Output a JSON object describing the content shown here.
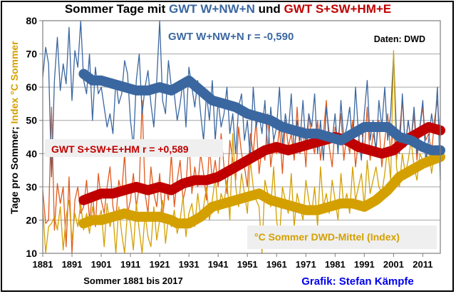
{
  "chart_data": {
    "type": "line",
    "title_parts": [
      {
        "text": "Sommer Tage mit ",
        "color": "#000000"
      },
      {
        "text": "GWT W+NW+N",
        "color": "#3b67a0"
      },
      {
        "text": " und ",
        "color": "#000000"
      },
      {
        "text": "GWT S+SW+HM+E",
        "color": "#c00000"
      }
    ],
    "ylabel_parts": [
      {
        "text": "Tage  pro Sommer; ",
        "color": "#000000"
      },
      {
        "text": "Index °C Sommer",
        "color": "#d4a000"
      }
    ],
    "xlabel": "Sommer 1881 bis 2017",
    "credit": "Grafik: Stefan Kämpfe",
    "source": "Daten: DWD",
    "xlim": [
      1881,
      2017
    ],
    "ylim": [
      10,
      80
    ],
    "xticks": [
      1881,
      1891,
      1901,
      1911,
      1921,
      1931,
      1941,
      1951,
      1961,
      1971,
      1981,
      1991,
      2001,
      2011
    ],
    "yticks": [
      10,
      20,
      30,
      40,
      50,
      60,
      70,
      80
    ],
    "grid": true,
    "annotations": [
      {
        "text": "GWT W+NW+N  r = -0,590",
        "color": "#3b67a0",
        "boxed": false
      },
      {
        "text": "GWT S+SW+E+HM r = +0,589",
        "color": "#c00000",
        "boxed": true
      },
      {
        "text": "°C Sommer DWD-Mittel (Index)",
        "color": "#d4a000",
        "boxed": true
      }
    ],
    "series": [
      {
        "name": "GWT W+NW+N (smoothed)",
        "color": "#3b67a0",
        "kind": "smooth",
        "x": [
          1895,
          1898,
          1901,
          1905,
          1909,
          1913,
          1917,
          1921,
          1925,
          1929,
          1931,
          1935,
          1939,
          1943,
          1947,
          1951,
          1955,
          1959,
          1963,
          1967,
          1971,
          1975,
          1979,
          1983,
          1987,
          1991,
          1995,
          1999,
          2003,
          2007,
          2011,
          2014,
          2017
        ],
        "y": [
          64,
          62,
          62,
          61,
          60,
          59,
          59,
          60,
          59,
          61,
          62,
          59,
          56,
          55,
          54,
          52,
          51,
          50,
          48,
          47,
          46,
          46,
          45,
          44,
          46,
          48,
          48,
          48,
          45,
          44,
          42,
          41,
          41
        ]
      },
      {
        "name": "GWT S+SW+HM+E (smoothed)",
        "color": "#c00000",
        "kind": "smooth",
        "x": [
          1895,
          1898,
          1901,
          1905,
          1909,
          1913,
          1917,
          1921,
          1925,
          1929,
          1933,
          1937,
          1941,
          1945,
          1949,
          1953,
          1957,
          1961,
          1965,
          1969,
          1973,
          1977,
          1981,
          1985,
          1989,
          1993,
          1997,
          2001,
          2005,
          2009,
          2013,
          2017
        ],
        "y": [
          26,
          27,
          28,
          28,
          29,
          30,
          29,
          30,
          29,
          31,
          32,
          32,
          33,
          35,
          37,
          39,
          41,
          42,
          41,
          42,
          43,
          44,
          45,
          44,
          42,
          41,
          40,
          41,
          44,
          46,
          48,
          47
        ]
      },
      {
        "name": "°C Sommer DWD-Mittel (Index, smoothed)",
        "color": "#d4a000",
        "kind": "smooth",
        "x": [
          1895,
          1898,
          1901,
          1905,
          1909,
          1913,
          1917,
          1921,
          1925,
          1927,
          1931,
          1935,
          1939,
          1943,
          1947,
          1951,
          1955,
          1959,
          1963,
          1967,
          1971,
          1975,
          1979,
          1983,
          1987,
          1991,
          1995,
          1999,
          2003,
          2007,
          2011,
          2014,
          2017
        ],
        "y": [
          19,
          20,
          20,
          21,
          22,
          21,
          21,
          21,
          20,
          19,
          19,
          21,
          24,
          25,
          26,
          27,
          28,
          26,
          25,
          24,
          23,
          23,
          24,
          25,
          25,
          24,
          26,
          29,
          33,
          35,
          37,
          38,
          39
        ]
      },
      {
        "name": "GWT W+NW+N (annual)",
        "color": "#3b67a0",
        "kind": "annual",
        "x": [
          1881,
          1882,
          1883,
          1884,
          1885,
          1886,
          1887,
          1888,
          1889,
          1890,
          1891,
          1892,
          1893,
          1894,
          1895,
          1896,
          1897,
          1898,
          1899,
          1900,
          1901,
          1902,
          1903,
          1904,
          1905,
          1906,
          1907,
          1908,
          1909,
          1910,
          1911,
          1912,
          1913,
          1914,
          1915,
          1916,
          1917,
          1918,
          1919,
          1920,
          1921,
          1922,
          1923,
          1924,
          1925,
          1926,
          1927,
          1928,
          1929,
          1930,
          1931,
          1932,
          1933,
          1934,
          1935,
          1936,
          1937,
          1938,
          1939,
          1940,
          1941,
          1942,
          1943,
          1944,
          1945,
          1946,
          1947,
          1948,
          1949,
          1950,
          1951,
          1952,
          1953,
          1954,
          1955,
          1956,
          1957,
          1958,
          1959,
          1960,
          1961,
          1962,
          1963,
          1964,
          1965,
          1966,
          1967,
          1968,
          1969,
          1970,
          1971,
          1972,
          1973,
          1974,
          1975,
          1976,
          1977,
          1978,
          1979,
          1980,
          1981,
          1982,
          1983,
          1984,
          1985,
          1986,
          1987,
          1988,
          1989,
          1990,
          1991,
          1992,
          1993,
          1994,
          1995,
          1996,
          1997,
          1998,
          1999,
          2000,
          2001,
          2002,
          2003,
          2004,
          2005,
          2006,
          2007,
          2008,
          2009,
          2010,
          2011,
          2012,
          2013,
          2014,
          2015,
          2016,
          2017
        ],
        "y": [
          63,
          72,
          67,
          33,
          62,
          75,
          59,
          67,
          61,
          78,
          56,
          71,
          66,
          80,
          62,
          58,
          70,
          50,
          66,
          58,
          60,
          54,
          48,
          52,
          46,
          62,
          55,
          58,
          68,
          64,
          50,
          42,
          62,
          70,
          52,
          60,
          65,
          55,
          48,
          62,
          80,
          56,
          52,
          68,
          60,
          58,
          50,
          55,
          62,
          48,
          66,
          60,
          54,
          62,
          52,
          44,
          58,
          50,
          62,
          44,
          56,
          48,
          52,
          60,
          46,
          52,
          40,
          54,
          58,
          44,
          50,
          38,
          60,
          48,
          52,
          46,
          56,
          40,
          54,
          44,
          48,
          60,
          42,
          52,
          46,
          58,
          40,
          50,
          44,
          56,
          42,
          52,
          48,
          58,
          40,
          50,
          38,
          54,
          46,
          44,
          52,
          40,
          56,
          44,
          48,
          54,
          42,
          60,
          46,
          38,
          52,
          62,
          44,
          50,
          40,
          56,
          48,
          60,
          44,
          52,
          70,
          46,
          40,
          58,
          42,
          50,
          44,
          54,
          40,
          48,
          56,
          38,
          44,
          52,
          46,
          60,
          32
        ]
      },
      {
        "name": "GWT S+SW+HM+E (annual)",
        "color": "#e05a1e",
        "kind": "annual",
        "x": [
          1881,
          1882,
          1883,
          1884,
          1885,
          1886,
          1887,
          1888,
          1889,
          1890,
          1891,
          1892,
          1893,
          1894,
          1895,
          1896,
          1897,
          1898,
          1899,
          1900,
          1901,
          1902,
          1903,
          1904,
          1905,
          1906,
          1907,
          1908,
          1909,
          1910,
          1911,
          1912,
          1913,
          1914,
          1915,
          1916,
          1917,
          1918,
          1919,
          1920,
          1921,
          1922,
          1923,
          1924,
          1925,
          1926,
          1927,
          1928,
          1929,
          1930,
          1931,
          1932,
          1933,
          1934,
          1935,
          1936,
          1937,
          1938,
          1939,
          1940,
          1941,
          1942,
          1943,
          1944,
          1945,
          1946,
          1947,
          1948,
          1949,
          1950,
          1951,
          1952,
          1953,
          1954,
          1955,
          1956,
          1957,
          1958,
          1959,
          1960,
          1961,
          1962,
          1963,
          1964,
          1965,
          1966,
          1967,
          1968,
          1969,
          1970,
          1971,
          1972,
          1973,
          1974,
          1975,
          1976,
          1977,
          1978,
          1979,
          1980,
          1981,
          1982,
          1983,
          1984,
          1985,
          1986,
          1987,
          1988,
          1989,
          1990,
          1991,
          1992,
          1993,
          1994,
          1995,
          1996,
          1997,
          1998,
          1999,
          2000,
          2001,
          2002,
          2003,
          2004,
          2005,
          2006,
          2007,
          2008,
          2009,
          2010,
          2011,
          2012,
          2013,
          2014,
          2015,
          2016,
          2017
        ],
        "y": [
          29,
          19,
          20,
          54,
          17,
          31,
          25,
          30,
          12,
          33,
          10,
          26,
          30,
          22,
          24,
          32,
          20,
          28,
          18,
          34,
          26,
          22,
          30,
          36,
          24,
          20,
          32,
          28,
          40,
          22,
          26,
          34,
          24,
          30,
          56,
          28,
          22,
          36,
          28,
          24,
          34,
          20,
          30,
          26,
          40,
          24,
          32,
          38,
          26,
          30,
          44,
          28,
          36,
          30,
          40,
          34,
          26,
          42,
          32,
          38,
          30,
          46,
          36,
          28,
          44,
          38,
          32,
          48,
          40,
          36,
          30,
          46,
          40,
          50,
          34,
          42,
          38,
          52,
          36,
          44,
          40,
          48,
          34,
          50,
          42,
          46,
          38,
          54,
          40,
          48,
          36,
          52,
          44,
          40,
          50,
          38,
          46,
          56,
          42,
          36,
          48,
          44,
          52,
          38,
          46,
          40,
          50,
          36,
          44,
          48,
          40,
          54,
          38,
          46,
          42,
          50,
          36,
          44,
          52,
          40,
          48,
          38,
          46,
          56,
          42,
          50,
          44,
          52,
          38,
          48,
          54,
          44,
          46,
          40,
          50,
          56,
          44
        ]
      },
      {
        "name": "°C Sommer (Index, annual)",
        "color": "#d4a000",
        "kind": "annual",
        "x": [
          1881,
          1882,
          1883,
          1884,
          1885,
          1886,
          1887,
          1888,
          1889,
          1890,
          1891,
          1892,
          1893,
          1894,
          1895,
          1896,
          1897,
          1898,
          1899,
          1900,
          1901,
          1902,
          1903,
          1904,
          1905,
          1906,
          1907,
          1908,
          1909,
          1910,
          1911,
          1912,
          1913,
          1914,
          1915,
          1916,
          1917,
          1918,
          1919,
          1920,
          1921,
          1922,
          1923,
          1924,
          1925,
          1926,
          1927,
          1928,
          1929,
          1930,
          1931,
          1932,
          1933,
          1934,
          1935,
          1936,
          1937,
          1938,
          1939,
          1940,
          1941,
          1942,
          1943,
          1944,
          1945,
          1946,
          1947,
          1948,
          1949,
          1950,
          1951,
          1952,
          1953,
          1954,
          1955,
          1956,
          1957,
          1958,
          1959,
          1960,
          1961,
          1962,
          1963,
          1964,
          1965,
          1966,
          1967,
          1968,
          1969,
          1970,
          1971,
          1972,
          1973,
          1974,
          1975,
          1976,
          1977,
          1978,
          1979,
          1980,
          1981,
          1982,
          1983,
          1984,
          1985,
          1986,
          1987,
          1988,
          1989,
          1990,
          1991,
          1992,
          1993,
          1994,
          1995,
          1996,
          1997,
          1998,
          1999,
          2000,
          2001,
          2002,
          2003,
          2004,
          2005,
          2006,
          2007,
          2008,
          2009,
          2010,
          2011,
          2012,
          2013,
          2014,
          2015,
          2016,
          2017
        ],
        "y": [
          24,
          10,
          18,
          19,
          21,
          17,
          24,
          11,
          21,
          26,
          14,
          22,
          18,
          25,
          17,
          22,
          16,
          24,
          19,
          20,
          23,
          12,
          25,
          18,
          22,
          10,
          24,
          16,
          10,
          23,
          19,
          11,
          25,
          17,
          10,
          22,
          15,
          12,
          24,
          14,
          20,
          26,
          13,
          21,
          18,
          23,
          16,
          20,
          27,
          15,
          22,
          25,
          18,
          28,
          21,
          24,
          30,
          20,
          26,
          33,
          22,
          28,
          25,
          32,
          20,
          46,
          30,
          24,
          34,
          28,
          22,
          38,
          30,
          26,
          24,
          10,
          32,
          28,
          24,
          36,
          20,
          14,
          30,
          26,
          22,
          34,
          18,
          28,
          24,
          20,
          32,
          26,
          22,
          30,
          18,
          36,
          24,
          28,
          22,
          32,
          26,
          20,
          34,
          24,
          28,
          22,
          36,
          26,
          30,
          34,
          24,
          38,
          28,
          32,
          36,
          30,
          28,
          34,
          42,
          32,
          71,
          36,
          30,
          40,
          34,
          38,
          44,
          36,
          32,
          40,
          38,
          36,
          42,
          34,
          40,
          38,
          42
        ]
      }
    ]
  }
}
